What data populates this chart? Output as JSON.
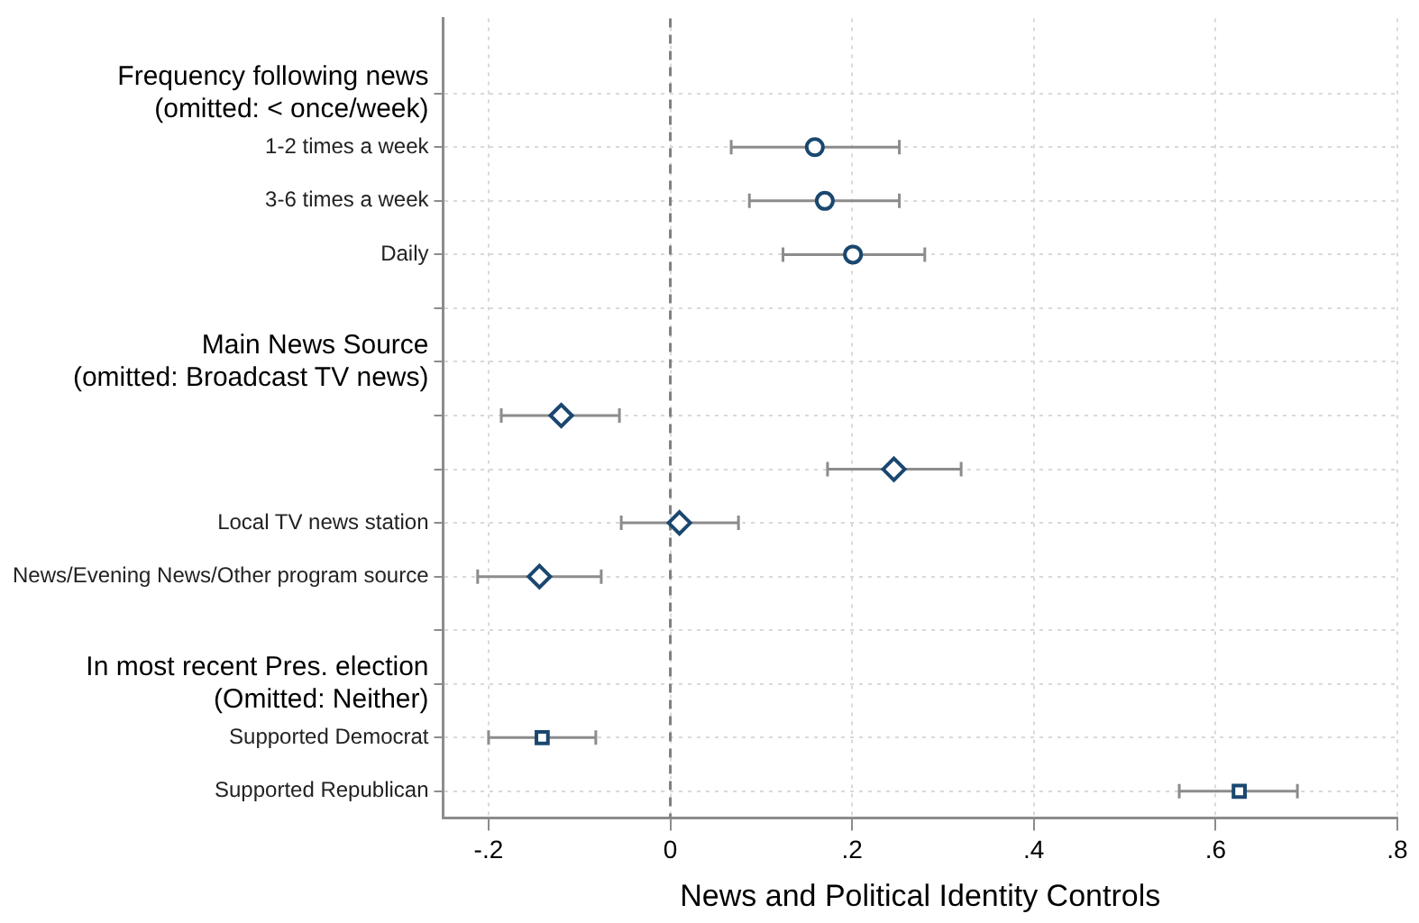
{
  "chart_data": {
    "type": "scatter",
    "orientation": "horizontal",
    "xlabel": "News and Political Identity Controls",
    "categories": [
      "Frequency following news\n(omitted: < once/week)",
      "1-2 times a week",
      "3-6 times a week",
      "Daily",
      null,
      "Main News Source\n(omitted: Broadcast TV news)",
      null,
      null,
      "Local TV news station",
      "News/Evening News/Other program source",
      null,
      "In most recent Pres. election\n(Omitted: Neither)",
      "Supported Democrat",
      "Supported Republican"
    ],
    "series": [
      {
        "color": "#1a476f",
        "marker": "circle",
        "values": [
          null,
          0.159,
          0.17,
          0.201,
          null,
          null,
          null,
          null,
          null,
          null,
          null,
          null,
          null,
          null
        ],
        "errors": [
          null,
          [
            0.067,
            0.252
          ],
          [
            0.087,
            0.252
          ],
          [
            0.124,
            0.28
          ],
          null,
          null,
          null,
          null,
          null,
          null,
          null,
          null,
          null,
          null
        ]
      },
      {
        "color": "#1a476f",
        "marker": "diamond",
        "values": [
          null,
          null,
          null,
          null,
          null,
          null,
          -0.12,
          0.246,
          0.01,
          -0.144,
          null,
          null,
          null,
          null
        ],
        "errors": [
          null,
          null,
          null,
          null,
          null,
          null,
          [
            -0.186,
            -0.056
          ],
          [
            0.173,
            0.32
          ],
          [
            -0.054,
            0.075
          ],
          [
            -0.212,
            -0.076
          ],
          null,
          null,
          null,
          null
        ]
      },
      {
        "color": "#1a476f",
        "marker": "square",
        "values": [
          null,
          null,
          null,
          null,
          null,
          null,
          null,
          null,
          null,
          null,
          null,
          null,
          -0.141,
          0.626
        ],
        "errors": [
          null,
          null,
          null,
          null,
          null,
          null,
          null,
          null,
          null,
          null,
          null,
          null,
          [
            -0.2,
            -0.082
          ],
          [
            0.56,
            0.69
          ]
        ]
      }
    ],
    "xlim": [
      -0.25,
      0.8
    ],
    "xticks": [
      {
        "value": -0.2,
        "label": "-.2"
      },
      0,
      {
        "value": 0.2,
        "label": ".2"
      },
      {
        "value": 0.4,
        "label": ".4"
      },
      {
        "value": 0.6,
        "label": ".6"
      },
      {
        "value": 0.8,
        "label": ".8"
      }
    ],
    "ref_lines": [
      {
        "axis": "x",
        "value": 0,
        "color": "#808080",
        "line_style": "dashed"
      }
    ],
    "grid": true,
    "legend": false
  }
}
